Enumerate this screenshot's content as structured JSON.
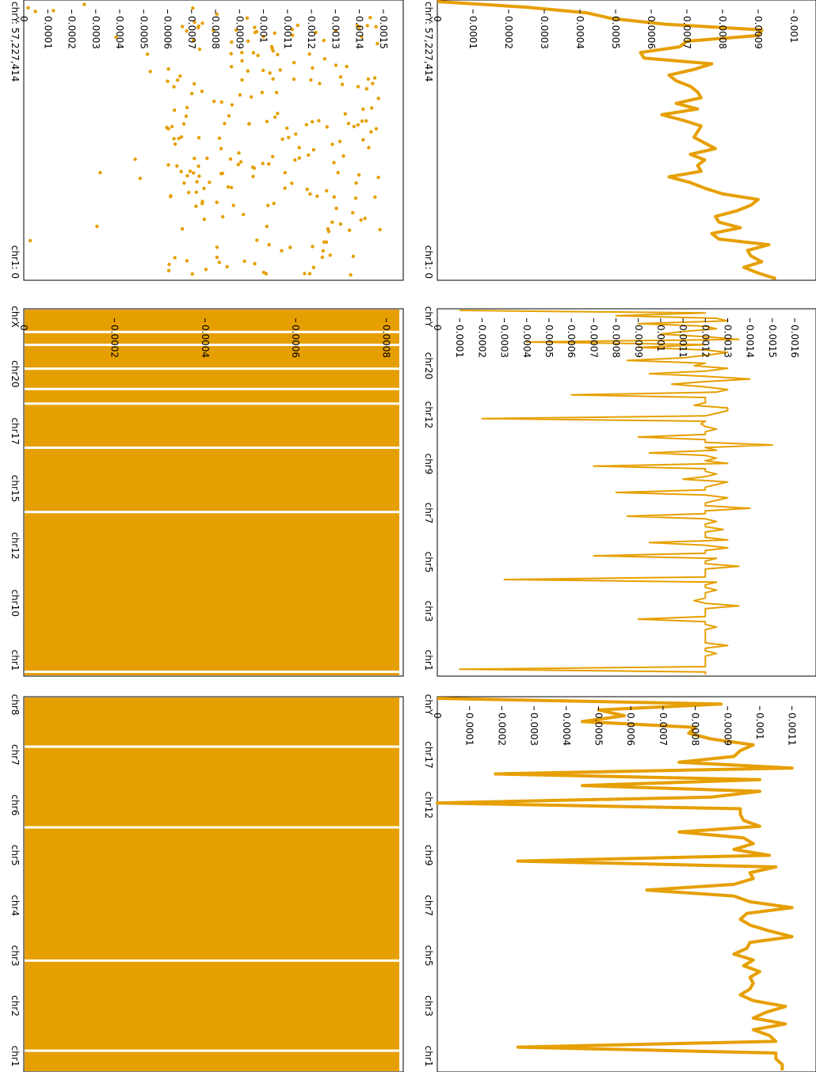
{
  "accent_color": "#E69F00",
  "chart_data": [
    {
      "type": "line",
      "scope": "chrY",
      "range_start_label": "chrY: 57,227,414",
      "range_end_label": "chr1: 0",
      "yticks": [
        "0",
        "0.0001",
        "0.0002",
        "0.0003",
        "0.0004",
        "0.0005",
        "0.0006",
        "0.0007",
        "0.0008",
        "0.0009",
        "0.001"
      ],
      "ylim": [
        0,
        0.00104
      ],
      "values": [
        0,
        0.00025,
        0.00042,
        0.00049,
        0.00064,
        0.00091,
        0.0009,
        0.0007,
        0.00068,
        0.00057,
        0.00058,
        0.00077,
        0.00072,
        0.00065,
        0.00067,
        0.00071,
        0.00073,
        0.00074,
        0.00067,
        0.00073,
        0.00063,
        0.00069,
        0.00074,
        0.00073,
        0.00072,
        0.00075,
        0.00078,
        0.00071,
        0.00075,
        0.00073,
        0.00074,
        0.00065,
        0.00071,
        0.00075,
        0.0008,
        0.0009,
        0.00088,
        0.00084,
        0.00078,
        0.00079,
        0.00085,
        0.00077,
        0.00079,
        0.00093,
        0.00087,
        0.00088,
        0.00091,
        0.00086,
        0.0009,
        0.00095
      ]
    },
    {
      "type": "line",
      "scope": "whole genome",
      "chromosomes": [
        "chrY",
        "chr20",
        "chr12",
        "chr9",
        "chr7",
        "chr5",
        "chr3",
        "chr1"
      ],
      "yticks": [
        "0",
        "0.0001",
        "0.0002",
        "0.0003",
        "0.0004",
        "0.0005",
        "0.0006",
        "0.0007",
        "0.0008",
        "0.0009",
        "0.001",
        "0.0011",
        "0.0012",
        "0.0013",
        "0.0014",
        "0.0015",
        "0.0016"
      ],
      "ylim": [
        0,
        0.00166
      ],
      "values": [
        0.0001,
        0.0012,
        0.0008,
        0.00125,
        0.0013,
        0.0009,
        0.0012,
        0.00125,
        0.0011,
        0.001,
        0.0012,
        0.00135,
        0.0004,
        0.0012,
        0.0009,
        0.0012,
        0.0013,
        0.0012,
        0.0011,
        0.00085,
        0.0012,
        0.00115,
        0.0013,
        0.0012,
        0.00095,
        0.0012,
        0.0014,
        0.0012,
        0.00105,
        0.0012,
        0.0013,
        0.00125,
        0.0006,
        0.0012,
        0.0012,
        0.0012,
        0.00115,
        0.0013,
        0.0013,
        0.00125,
        0.0012,
        0.0002,
        0.0012,
        0.00118,
        0.0012,
        0.00125,
        0.0012,
        0.0012,
        0.0009,
        0.0012,
        0.0012,
        0.0015,
        0.0012,
        0.00125,
        0.00095,
        0.0012,
        0.00125,
        0.0012,
        0.0013,
        0.0007,
        0.0012,
        0.0012,
        0.00125,
        0.0012,
        0.0011,
        0.0013,
        0.00125,
        0.0012,
        0.0012,
        0.0008,
        0.0012,
        0.0013,
        0.00125,
        0.0012,
        0.0012,
        0.0014,
        0.0012,
        0.0012,
        0.00085,
        0.0012,
        0.00125,
        0.0012,
        0.0012,
        0.00128,
        0.0012,
        0.0012,
        0.0012,
        0.0013,
        0.00095,
        0.0012,
        0.0013,
        0.0012,
        0.0012,
        0.0007,
        0.00125,
        0.0012,
        0.0012,
        0.00135,
        0.0012,
        0.0012,
        0.0012,
        0.0012,
        0.0003,
        0.00125,
        0.0012,
        0.0012,
        0.00125,
        0.0012,
        0.0012,
        0.0012,
        0.00115,
        0.0012,
        0.00135,
        0.0012,
        0.0012,
        0.0012,
        0.0012,
        0.0009,
        0.0012,
        0.0012,
        0.00125,
        0.0012,
        0.0012,
        0.0012,
        0.0012,
        0.0012,
        0.0012,
        0.0013,
        0.0012,
        0.0012,
        0.00125,
        0.0012,
        0.0012,
        0.0012,
        0.0012,
        0.0012,
        0.0001,
        0.0012,
        0.0012
      ]
    },
    {
      "type": "line",
      "scope": "zoomed region",
      "chromosomes": [
        "chrY",
        "chr17",
        "chr12",
        "chr9",
        "chr7",
        "chr5",
        "chr3",
        "chr1"
      ],
      "yticks": [
        "0",
        "0.0001",
        "0.0002",
        "0.0003",
        "0.0004",
        "0.0005",
        "0.0006",
        "0.0007",
        "0.0008",
        "0.0009",
        "0.001",
        "0.0011"
      ],
      "ylim": [
        0,
        0.00115
      ],
      "values": [
        0,
        0.00088,
        0.0005,
        0.00058,
        0.00045,
        0.0008,
        0.00078,
        0.00085,
        0.00098,
        0.00094,
        0.00092,
        0.00075,
        0.0011,
        0.00018,
        0.001,
        0.00045,
        0.001,
        0.00085,
        0.0,
        0.00094,
        0.00094,
        0.00095,
        0.001,
        0.00075,
        0.00095,
        0.00098,
        0.00092,
        0.00103,
        0.00025,
        0.00105,
        0.00097,
        0.00098,
        0.00092,
        0.00065,
        0.00092,
        0.00097,
        0.0011,
        0.00096,
        0.00094,
        0.00097,
        0.00103,
        0.0011,
        0.00097,
        0.00096,
        0.00092,
        0.00098,
        0.00095,
        0.001,
        0.00097,
        0.00098,
        0.00097,
        0.00094,
        0.00098,
        0.00108,
        0.00102,
        0.00098,
        0.00108,
        0.00098,
        0.00103,
        0.00105,
        0.00025,
        0.00105,
        0.00105,
        0.00107,
        0.00107
      ]
    },
    {
      "type": "scatter",
      "scope": "chrY",
      "range_start_label": "chrY: 57,227,414",
      "range_end_label": "chr1: 0",
      "yticks": [
        "0",
        "0.0001",
        "0.0002",
        "0.0003",
        "0.0004",
        "0.0005",
        "0.0006",
        "0.0007",
        "0.0008",
        "0.0009",
        "0.001",
        "0.0011",
        "0.0012",
        "0.0013",
        "0.0014",
        "0.0015"
      ],
      "ylim": [
        0,
        0.00155
      ],
      "point_count": 240
    },
    {
      "type": "area",
      "scope": "whole genome",
      "chromosomes": [
        "chrX",
        "chr20",
        "chr17",
        "chr15",
        "chr12",
        "chr10",
        "chr1"
      ],
      "yticks": [
        "0",
        "0.0002",
        "0.0004",
        "0.0006",
        "0.0008"
      ],
      "ylim": [
        0,
        0.00082
      ],
      "gaps": [
        0.06,
        0.095,
        0.16,
        0.215,
        0.255,
        0.375,
        0.55,
        0.985
      ]
    },
    {
      "type": "area",
      "scope": "zoomed region",
      "chromosomes": [
        "chr8",
        "chr7",
        "chr6",
        "chr5",
        "chr4",
        "chr3",
        "chr2",
        "chr1"
      ],
      "gaps": [
        0.13,
        0.345,
        0.7,
        0.94
      ]
    }
  ]
}
